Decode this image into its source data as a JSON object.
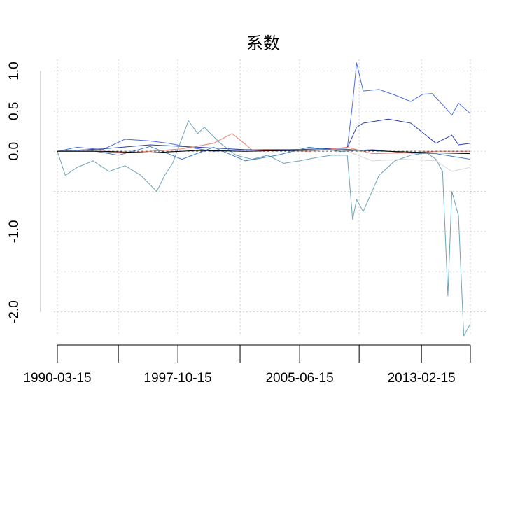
{
  "chart_data": {
    "type": "line",
    "title": "系数",
    "xlabel": "",
    "ylabel": "",
    "xlim": [
      "1990-03-15",
      "2016-03-15"
    ],
    "ylim": [
      -2.3,
      1.1
    ],
    "x_tick_labels": [
      "1990-03-15",
      "1997-10-15",
      "2005-06-15",
      "2013-02-15"
    ],
    "y_tick_labels": [
      "1.0",
      "0.5",
      "0.0",
      "-1.0",
      "-2.0"
    ],
    "grid": true,
    "legend": "none",
    "series": [
      {
        "color": "#4f6fd8",
        "x": [
          "1990-03-15",
          "1991-06-15",
          "1993-01-15",
          "1994-06-15",
          "1995-12-15",
          "1997-03-15",
          "1998-06-15",
          "2000-01-15",
          "2001-09-15",
          "2003-03-15",
          "2005-01-15",
          "2007-02-15",
          "2008-06-15",
          "2008-10-15",
          "2009-01-15",
          "2009-06-15",
          "2010-06-15",
          "2011-06-15",
          "2012-06-15",
          "2013-03-15",
          "2013-10-15",
          "2014-06-15",
          "2015-01-15",
          "2015-06-15",
          "2016-03-15"
        ],
        "values": [
          0.0,
          0.05,
          0.02,
          0.15,
          0.13,
          0.1,
          0.05,
          0.0,
          0.02,
          0.01,
          0.02,
          0.03,
          0.04,
          0.6,
          1.1,
          0.75,
          0.77,
          0.7,
          0.62,
          0.71,
          0.72,
          0.58,
          0.45,
          0.6,
          0.47
        ]
      },
      {
        "color": "#2c3fa8",
        "x": [
          "1990-03-15",
          "1993-01-15",
          "1996-01-15",
          "1999-01-15",
          "2002-01-15",
          "2005-01-15",
          "2008-06-15",
          "2009-01-15",
          "2009-06-15",
          "2011-01-15",
          "2012-06-15",
          "2014-01-15",
          "2015-01-15",
          "2015-06-15",
          "2016-03-15"
        ],
        "values": [
          0.0,
          0.03,
          0.08,
          0.05,
          0.02,
          0.02,
          0.04,
          0.3,
          0.35,
          0.4,
          0.35,
          0.1,
          0.2,
          0.08,
          0.1
        ]
      },
      {
        "color": "#6fa3b8",
        "x": [
          "1990-03-15",
          "1990-09-15",
          "1991-06-15",
          "1992-06-15",
          "1993-06-15",
          "1994-06-15",
          "1995-06-15",
          "1996-06-15",
          "1996-12-15",
          "1997-06-15",
          "1998-06-15",
          "1999-01-15",
          "1999-06-15",
          "2000-06-15",
          "2001-06-15",
          "2002-06-15",
          "2003-06-15",
          "2004-06-15",
          "2005-06-15",
          "2006-06-15",
          "2007-06-15",
          "2008-06-15",
          "2008-10-15",
          "2009-01-15",
          "2009-06-15",
          "2010-06-15",
          "2011-06-15",
          "2012-06-15",
          "2013-06-15",
          "2014-01-15",
          "2014-06-15",
          "2014-10-15",
          "2015-01-15",
          "2015-06-15",
          "2015-10-15",
          "2016-03-15"
        ],
        "values": [
          0.0,
          -0.3,
          -0.2,
          -0.12,
          -0.25,
          -0.18,
          -0.3,
          -0.5,
          -0.3,
          -0.15,
          0.38,
          0.22,
          0.3,
          0.1,
          -0.05,
          -0.1,
          -0.05,
          -0.15,
          -0.12,
          -0.08,
          -0.05,
          -0.05,
          -0.85,
          -0.6,
          -0.75,
          -0.3,
          -0.12,
          -0.05,
          -0.02,
          -0.1,
          -0.25,
          -1.8,
          -0.5,
          -0.8,
          -2.3,
          -2.15
        ]
      },
      {
        "color": "#3d7fc4",
        "x": [
          "1990-03-15",
          "1992-01-15",
          "1994-01-15",
          "1996-01-15",
          "1998-01-15",
          "2000-01-15",
          "2002-01-15",
          "2004-01-15",
          "2006-01-15",
          "2008-01-15",
          "2010-01-15",
          "2012-01-15",
          "2014-01-15",
          "2016-03-15"
        ],
        "values": [
          0.0,
          0.02,
          -0.05,
          0.06,
          -0.1,
          0.05,
          -0.12,
          -0.05,
          0.05,
          0.0,
          0.02,
          -0.02,
          -0.03,
          -0.1
        ]
      },
      {
        "color": "#f08070",
        "x": [
          "1990-03-15",
          "1992-01-15",
          "1994-01-15",
          "1996-01-15",
          "1998-01-15",
          "2000-01-15",
          "2001-03-15",
          "2002-06-15",
          "2004-01-15",
          "2006-01-15",
          "2008-06-15",
          "2010-01-15",
          "2012-01-15",
          "2014-01-15",
          "2016-03-15"
        ],
        "values": [
          0.0,
          0.01,
          -0.02,
          0.0,
          0.03,
          0.1,
          0.22,
          0.02,
          0.01,
          0.0,
          0.05,
          -0.03,
          -0.02,
          0.0,
          0.0
        ]
      },
      {
        "color": "#d8d8d8",
        "x": [
          "2008-06-15",
          "2010-01-15",
          "2012-01-15",
          "2014-01-15",
          "2015-01-15",
          "2016-03-15"
        ],
        "values": [
          0.0,
          -0.12,
          -0.1,
          -0.12,
          -0.25,
          -0.2
        ]
      },
      {
        "color": "#000000",
        "x": [
          "1990-03-15",
          "1993-01-15",
          "1996-01-15",
          "1999-01-15",
          "2002-01-15",
          "2005-01-15",
          "2008-06-15",
          "2011-01-15",
          "2014-01-15",
          "2016-03-15"
        ],
        "values": [
          0.0,
          0.0,
          -0.02,
          0.01,
          0.0,
          0.01,
          0.02,
          0.0,
          -0.02,
          -0.03
        ]
      }
    ]
  }
}
